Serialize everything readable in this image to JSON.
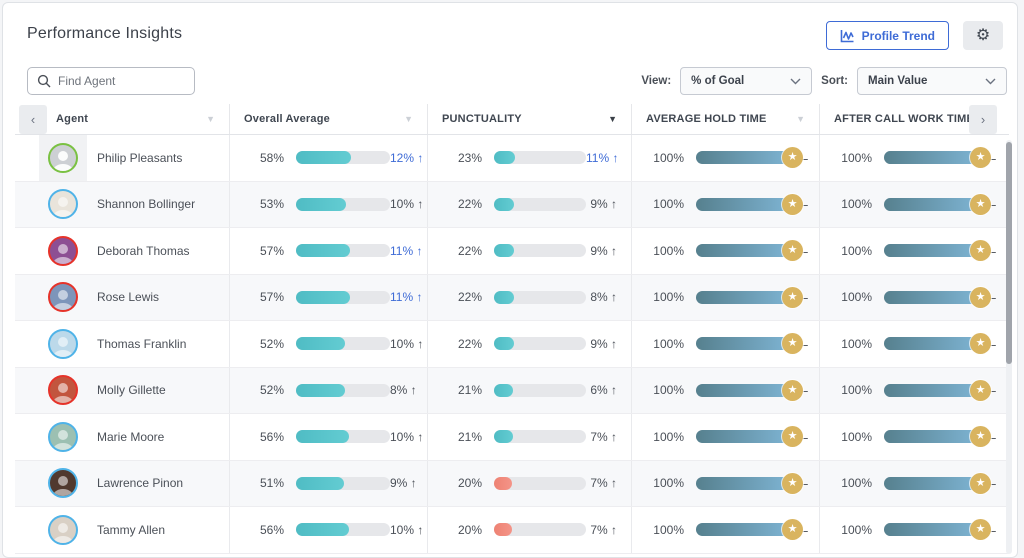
{
  "page": {
    "title": "Performance Insights"
  },
  "toolbar": {
    "profile_trend_label": "Profile Trend",
    "search_placeholder": "Find Agent",
    "view_label": "View:",
    "view_value": "% of Goal",
    "sort_label": "Sort:",
    "sort_value": "Main Value"
  },
  "icons": {
    "gear": "⚙",
    "sort_triangle": "▼",
    "nav_left": "‹",
    "nav_right": "›",
    "star": "★"
  },
  "colors": {
    "accent_blue": "#3e6bd6",
    "teal_bar": "#58c5cb",
    "salmon_bar": "#f28b7d",
    "goal_gradient_start": "#56808e",
    "goal_gradient_end": "#82b9da",
    "star_gold": "#d9b45f",
    "row_alt": "#f7f8fa"
  },
  "table": {
    "columns": [
      {
        "label": "Agent",
        "sort": "inactive"
      },
      {
        "label": "Overall Average",
        "sort": "inactive"
      },
      {
        "label": "PUNCTUALITY",
        "sort": "active"
      },
      {
        "label": "AVERAGE HOLD TIME",
        "sort": "inactive"
      },
      {
        "label": "AFTER CALL WORK TIME ...",
        "sort": "none"
      }
    ],
    "rows": [
      {
        "name": "Philip Pleasants",
        "ring_color": "#7ac142",
        "photo_bg": "#cdd0d4",
        "placeholder": true,
        "avatar_cell_highlight": true,
        "overall": {
          "value": "58%",
          "pct": 58,
          "trend": "12% ↑",
          "highlight": true
        },
        "punctuality": {
          "value": "23%",
          "pct": 23,
          "trend": "11% ↑",
          "highlight": true,
          "bar_color": "teal"
        },
        "hold": {
          "value": "100%",
          "pct": 100,
          "badge": "star",
          "trend": "–"
        },
        "acw": {
          "value": "100%",
          "pct": 100,
          "badge": "star",
          "trend": "–"
        }
      },
      {
        "name": "Shannon Bollinger",
        "ring_color": "#4fb3e8",
        "photo_bg": "#e9e4db",
        "placeholder": false,
        "avatar_cell_highlight": false,
        "overall": {
          "value": "53%",
          "pct": 53,
          "trend": "10% ↑",
          "highlight": false
        },
        "punctuality": {
          "value": "22%",
          "pct": 22,
          "trend": "9% ↑",
          "highlight": false,
          "bar_color": "teal"
        },
        "hold": {
          "value": "100%",
          "pct": 100,
          "badge": "star",
          "trend": "–"
        },
        "acw": {
          "value": "100%",
          "pct": 100,
          "badge": "star",
          "trend": "–"
        }
      },
      {
        "name": "Deborah Thomas",
        "ring_color": "#e6332a",
        "photo_bg": "#8d4f93",
        "placeholder": false,
        "avatar_cell_highlight": false,
        "overall": {
          "value": "57%",
          "pct": 57,
          "trend": "11% ↑",
          "highlight": true
        },
        "punctuality": {
          "value": "22%",
          "pct": 22,
          "trend": "9% ↑",
          "highlight": false,
          "bar_color": "teal"
        },
        "hold": {
          "value": "100%",
          "pct": 100,
          "badge": "star",
          "trend": "–"
        },
        "acw": {
          "value": "100%",
          "pct": 100,
          "badge": "star",
          "trend": "–"
        }
      },
      {
        "name": "Rose Lewis",
        "ring_color": "#e6332a",
        "photo_bg": "#7d95ba",
        "placeholder": false,
        "avatar_cell_highlight": false,
        "overall": {
          "value": "57%",
          "pct": 57,
          "trend": "11% ↑",
          "highlight": true
        },
        "punctuality": {
          "value": "22%",
          "pct": 22,
          "trend": "8% ↑",
          "highlight": false,
          "bar_color": "teal"
        },
        "hold": {
          "value": "100%",
          "pct": 100,
          "badge": "star",
          "trend": "–"
        },
        "acw": {
          "value": "100%",
          "pct": 100,
          "badge": "star",
          "trend": "–"
        }
      },
      {
        "name": "Thomas Franklin",
        "ring_color": "#4fb3e8",
        "photo_bg": "#bcd9ea",
        "placeholder": false,
        "avatar_cell_highlight": false,
        "overall": {
          "value": "52%",
          "pct": 52,
          "trend": "10% ↑",
          "highlight": false
        },
        "punctuality": {
          "value": "22%",
          "pct": 22,
          "trend": "9% ↑",
          "highlight": false,
          "bar_color": "teal"
        },
        "hold": {
          "value": "100%",
          "pct": 100,
          "badge": "star",
          "trend": "–"
        },
        "acw": {
          "value": "100%",
          "pct": 100,
          "badge": "star",
          "trend": "–"
        }
      },
      {
        "name": "Molly Gillette",
        "ring_color": "#e6332a",
        "photo_bg": "#c2553e",
        "placeholder": false,
        "avatar_cell_highlight": false,
        "overall": {
          "value": "52%",
          "pct": 52,
          "trend": "8% ↑",
          "highlight": false
        },
        "punctuality": {
          "value": "21%",
          "pct": 21,
          "trend": "6% ↑",
          "highlight": false,
          "bar_color": "teal"
        },
        "hold": {
          "value": "100%",
          "pct": 100,
          "badge": "star",
          "trend": "–"
        },
        "acw": {
          "value": "100%",
          "pct": 100,
          "badge": "star",
          "trend": "–"
        }
      },
      {
        "name": "Marie Moore",
        "ring_color": "#4fb3e8",
        "photo_bg": "#9cc0b2",
        "placeholder": false,
        "avatar_cell_highlight": false,
        "overall": {
          "value": "56%",
          "pct": 56,
          "trend": "10% ↑",
          "highlight": false
        },
        "punctuality": {
          "value": "21%",
          "pct": 21,
          "trend": "7% ↑",
          "highlight": false,
          "bar_color": "teal"
        },
        "hold": {
          "value": "100%",
          "pct": 100,
          "badge": "star",
          "trend": "–"
        },
        "acw": {
          "value": "100%",
          "pct": 100,
          "badge": "star",
          "trend": "–"
        }
      },
      {
        "name": "Lawrence Pinon",
        "ring_color": "#4fb3e8",
        "photo_bg": "#50392e",
        "placeholder": false,
        "avatar_cell_highlight": false,
        "overall": {
          "value": "51%",
          "pct": 51,
          "trend": "9% ↑",
          "highlight": false
        },
        "punctuality": {
          "value": "20%",
          "pct": 20,
          "trend": "7% ↑",
          "highlight": false,
          "bar_color": "salmon"
        },
        "hold": {
          "value": "100%",
          "pct": 100,
          "badge": "star",
          "trend": "–"
        },
        "acw": {
          "value": "100%",
          "pct": 100,
          "badge": "star",
          "trend": "–"
        }
      },
      {
        "name": "Tammy Allen",
        "ring_color": "#4fb3e8",
        "photo_bg": "#d9d0c5",
        "placeholder": false,
        "avatar_cell_highlight": false,
        "overall": {
          "value": "56%",
          "pct": 56,
          "trend": "10% ↑",
          "highlight": false
        },
        "punctuality": {
          "value": "20%",
          "pct": 20,
          "trend": "7% ↑",
          "highlight": false,
          "bar_color": "salmon"
        },
        "hold": {
          "value": "100%",
          "pct": 100,
          "badge": "star",
          "trend": "–"
        },
        "acw": {
          "value": "100%",
          "pct": 100,
          "badge": "star",
          "trend": "–"
        }
      }
    ]
  }
}
